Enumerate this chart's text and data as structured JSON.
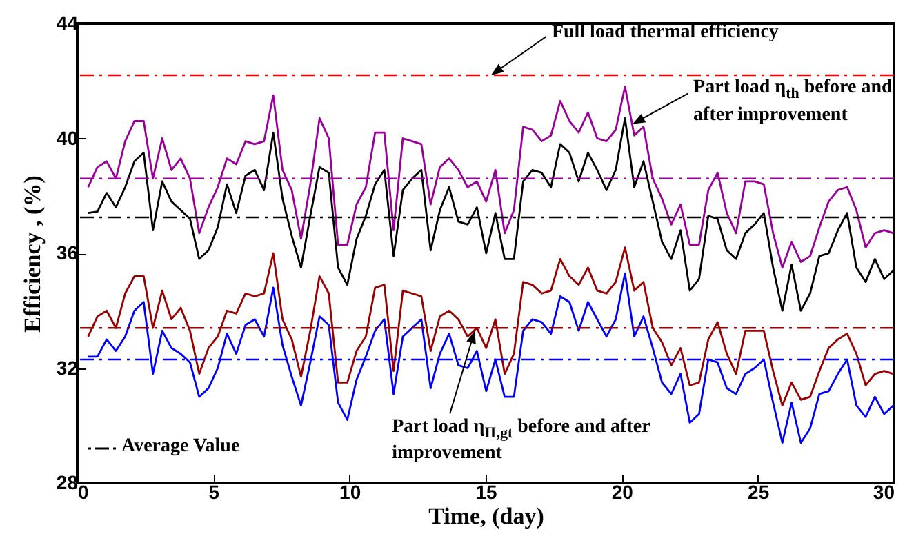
{
  "chart_data": {
    "type": "line",
    "xlabel": "Time, (day)",
    "ylabel": "Efficiency ,  (%)",
    "xlim": [
      0,
      30
    ],
    "xticks": [
      0,
      5,
      10,
      15,
      20,
      25,
      30
    ],
    "ylim": [
      28,
      44
    ],
    "yticks": [
      28,
      32,
      36,
      40,
      44
    ],
    "grid": false,
    "line_style": "solid",
    "x": [
      0.4,
      0.74,
      1.08,
      1.42,
      1.76,
      2.1,
      2.44,
      2.78,
      3.12,
      3.46,
      3.8,
      4.14,
      4.48,
      4.82,
      5.16,
      5.5,
      5.84,
      6.18,
      6.52,
      6.86,
      7.2,
      7.54,
      7.88,
      8.22,
      8.56,
      8.9,
      9.24,
      9.58,
      9.92,
      10.26,
      10.6,
      10.94,
      11.28,
      11.62,
      11.96,
      12.3,
      12.64,
      12.98,
      13.32,
      13.66,
      14.0,
      14.34,
      14.68,
      15.02,
      15.36,
      15.7,
      16.04,
      16.38,
      16.72,
      17.06,
      17.4,
      17.74,
      18.08,
      18.42,
      18.76,
      19.1,
      19.44,
      19.78,
      20.12,
      20.46,
      20.8,
      21.14,
      21.48,
      21.82,
      22.16,
      22.5,
      22.84,
      23.18,
      23.52,
      23.86,
      24.2,
      24.54,
      24.88,
      25.22,
      25.56,
      25.9,
      26.24,
      26.58,
      26.92,
      27.26,
      27.6,
      27.94,
      28.28,
      28.62,
      28.96,
      29.3,
      29.64,
      29.98
    ],
    "series": [
      {
        "color": "#990099",
        "values": [
          38.3,
          39.0,
          39.2,
          38.6,
          39.9,
          40.6,
          40.6,
          38.6,
          40.0,
          38.9,
          39.3,
          38.6,
          36.7,
          37.6,
          38.3,
          39.3,
          39.1,
          39.9,
          39.8,
          39.9,
          41.5,
          38.9,
          38.2,
          36.5,
          38.4,
          40.7,
          40.0,
          36.3,
          36.3,
          37.7,
          38.3,
          40.2,
          40.2,
          36.8,
          40.0,
          39.9,
          39.8,
          37.7,
          39.0,
          39.3,
          38.9,
          38.3,
          38.5,
          37.8,
          38.9,
          36.7,
          37.5,
          40.4,
          40.3,
          39.9,
          40.1,
          41.3,
          40.6,
          40.2,
          40.9,
          40.0,
          39.9,
          40.3,
          41.8,
          40.1,
          40.4,
          38.6,
          37.9,
          37.0,
          37.7,
          36.3,
          36.3,
          38.2,
          38.8,
          37.4,
          36.7,
          38.5,
          38.5,
          38.4,
          36.7,
          35.5,
          36.4,
          35.7,
          35.9,
          36.9,
          37.8,
          38.2,
          38.3,
          37.5,
          36.2,
          36.7,
          36.8,
          36.7
        ]
      },
      {
        "color": "#000000",
        "values": [
          37.4,
          37.45,
          38.1,
          37.6,
          38.3,
          39.2,
          39.5,
          36.8,
          38.5,
          37.8,
          37.5,
          37.2,
          35.8,
          36.1,
          36.9,
          38.4,
          37.4,
          38.7,
          38.9,
          38.2,
          40.2,
          37.9,
          36.6,
          35.5,
          37.3,
          39.0,
          38.8,
          35.5,
          34.9,
          36.5,
          37.3,
          38.4,
          38.9,
          35.9,
          38.2,
          38.6,
          38.9,
          36.1,
          37.5,
          38.3,
          37.1,
          37.0,
          37.6,
          36.0,
          37.4,
          35.8,
          35.8,
          38.5,
          38.9,
          38.8,
          38.3,
          39.8,
          39.5,
          38.5,
          39.5,
          38.9,
          38.2,
          38.9,
          40.7,
          38.3,
          39.2,
          37.8,
          36.4,
          35.8,
          36.8,
          34.7,
          35.1,
          37.3,
          37.2,
          36.1,
          35.8,
          36.7,
          37.0,
          37.4,
          35.5,
          34.0,
          35.6,
          34.0,
          34.6,
          35.9,
          36.0,
          36.8,
          37.4,
          35.5,
          35.0,
          35.8,
          35.1,
          35.4
        ]
      },
      {
        "color": "#990000",
        "values": [
          33.1,
          33.8,
          34.0,
          33.4,
          34.6,
          35.2,
          35.2,
          33.4,
          34.7,
          33.7,
          34.1,
          33.3,
          31.8,
          32.7,
          33.1,
          34.0,
          33.9,
          34.6,
          34.5,
          34.6,
          36.0,
          33.7,
          33.0,
          31.7,
          33.3,
          35.2,
          34.6,
          31.5,
          31.5,
          32.6,
          33.1,
          34.8,
          34.9,
          31.9,
          34.7,
          34.6,
          34.5,
          32.6,
          33.8,
          34.0,
          33.7,
          33.1,
          33.4,
          32.7,
          33.7,
          31.8,
          32.5,
          35.0,
          34.9,
          34.6,
          34.7,
          35.8,
          35.2,
          34.9,
          35.5,
          34.7,
          34.6,
          35.0,
          36.2,
          34.7,
          35.0,
          33.4,
          32.9,
          32.1,
          32.7,
          31.4,
          31.5,
          33.0,
          33.6,
          32.5,
          31.8,
          33.3,
          33.3,
          33.3,
          31.9,
          30.7,
          31.5,
          30.9,
          31.0,
          31.9,
          32.7,
          33.0,
          33.2,
          32.5,
          31.4,
          31.8,
          31.9,
          31.8
        ]
      },
      {
        "color": "#0000ff",
        "values": [
          32.4,
          32.4,
          33.0,
          32.6,
          33.1,
          34.0,
          34.3,
          31.8,
          33.3,
          32.7,
          32.5,
          32.2,
          31.0,
          31.3,
          32.0,
          33.2,
          32.5,
          33.5,
          33.7,
          33.1,
          34.8,
          32.8,
          31.7,
          30.7,
          32.2,
          33.8,
          33.5,
          30.8,
          30.2,
          31.6,
          32.4,
          33.3,
          33.7,
          31.1,
          33.1,
          33.4,
          33.7,
          31.3,
          32.5,
          33.2,
          32.1,
          32.0,
          32.6,
          31.2,
          32.3,
          31.0,
          31.0,
          33.3,
          33.7,
          33.6,
          33.2,
          34.5,
          34.3,
          33.3,
          34.3,
          33.7,
          33.1,
          33.7,
          35.3,
          33.1,
          33.8,
          32.7,
          31.5,
          31.1,
          31.8,
          30.1,
          30.4,
          32.3,
          32.2,
          31.3,
          31.1,
          31.8,
          32.0,
          32.3,
          30.8,
          29.4,
          30.8,
          29.4,
          29.9,
          31.1,
          31.2,
          31.8,
          32.3,
          30.7,
          30.3,
          31.0,
          30.4,
          30.7
        ]
      }
    ],
    "ref_lines": [
      {
        "axis": "y",
        "value": 42.2,
        "color": "#ff0000",
        "line_style": "dashdot"
      },
      {
        "axis": "y",
        "value": 38.6,
        "color": "#990099",
        "line_style": "dashdot"
      },
      {
        "axis": "y",
        "value": 37.25,
        "color": "#000000",
        "line_style": "dashdot"
      },
      {
        "axis": "y",
        "value": 33.4,
        "color": "#990000",
        "line_style": "dashdot"
      },
      {
        "axis": "y",
        "value": 32.3,
        "color": "#0000ff",
        "line_style": "dashdot"
      }
    ],
    "annotations": [
      {
        "text": "Full load thermal efficiency",
        "x": 15.2,
        "y": 42.2
      },
      {
        "text": "Part load η$_{th}$ before and after improvement",
        "x": 20.4,
        "y": 40.5
      },
      {
        "text": "Part load η$_{II,gt}$ before and after improvement",
        "x": 14.6,
        "y": 33.3
      },
      "Average Value"
    ]
  }
}
